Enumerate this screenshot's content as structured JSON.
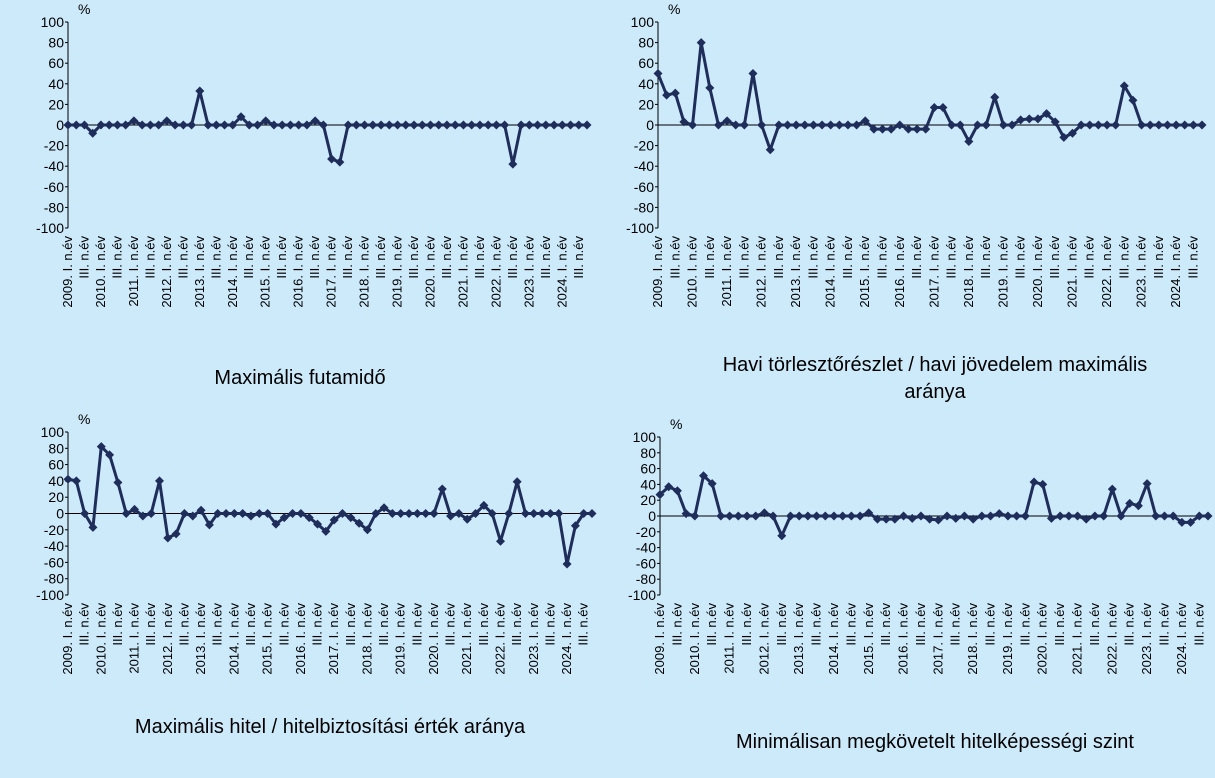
{
  "chart_data": [
    {
      "type": "line",
      "title": "Maximális futamidő",
      "y_unit": "%",
      "color": "#1f2d5a",
      "categories": [
        "2009. I. n.év",
        null,
        "III. n.év",
        null,
        "2010. I. n.év",
        null,
        "III. n.év",
        null,
        "2011. I. n.év",
        null,
        "III. n.év",
        null,
        "2012. I. n.év",
        null,
        "III. n.év",
        null,
        "2013. I. n.év",
        null,
        "III. n.év",
        null,
        "2014. I. n.év",
        null,
        "III. n.év",
        null,
        "2015. I. n.év",
        null,
        "III. n.év",
        null,
        "2016. I. n.év",
        null,
        "III. n.év",
        null,
        "2017. I. n.év",
        null,
        "III. n.év",
        null,
        "2018. I. n.év",
        null,
        "III. n.év",
        null,
        "2019. I. n.év",
        null,
        "III. n.év",
        null,
        "2020. I. n.év",
        null,
        "III. n.év",
        null,
        "2021. I. n.év",
        null,
        "III. n.év",
        null,
        "2022. I. n.év",
        null,
        "III. n.év",
        null,
        "2023. I. n.év",
        null,
        "III. n.év",
        null,
        "2024. I. n.év",
        null,
        "III. n.év",
        null
      ],
      "values": [
        0,
        0,
        0,
        -8,
        0,
        0,
        0,
        0,
        4,
        0,
        0,
        0,
        4,
        0,
        0,
        0,
        33,
        0,
        0,
        0,
        0,
        8,
        0,
        0,
        4,
        0,
        0,
        0,
        0,
        0,
        4,
        0,
        -33,
        -36,
        0,
        0,
        0,
        0,
        0,
        0,
        0,
        0,
        0,
        0,
        0,
        0,
        0,
        0,
        0,
        0,
        0,
        0,
        0,
        0,
        -38,
        0,
        0,
        0,
        0,
        0,
        0,
        0,
        0,
        0
      ],
      "ylim": [
        -100,
        100
      ],
      "yticks": [
        100,
        80,
        60,
        40,
        20,
        0,
        -20,
        -40,
        -60,
        -80,
        -100
      ]
    },
    {
      "type": "line",
      "title": "Havi törlesztőrészlet / havi jövedelem maximális aránya",
      "y_unit": "%",
      "color": "#1f2d5a",
      "categories": [
        "2009. I. n.év",
        null,
        "III. n.év",
        null,
        "2010. I. n.év",
        null,
        "III. n.év",
        null,
        "2011. I. n.év",
        null,
        "III. n.év",
        null,
        "2012. I. n.év",
        null,
        "III. n.év",
        null,
        "2013. I. n.év",
        null,
        "III. n.év",
        null,
        "2014. I. n.év",
        null,
        "III. n.év",
        null,
        "2015. I. n.év",
        null,
        "III. n.év",
        null,
        "2016. I. n.év",
        null,
        "III. n.év",
        null,
        "2017. I. n.év",
        null,
        "III. n.év",
        null,
        "2018. I. n.év",
        null,
        "III. n.év",
        null,
        "2019. I. n.év",
        null,
        "III. n.év",
        null,
        "2020. I. n.év",
        null,
        "III. n.év",
        null,
        "2021. I. n.év",
        null,
        "III. n.év",
        null,
        "2022. I. n.év",
        null,
        "III. n.év",
        null,
        "2023. I. n.év",
        null,
        "III. n.év",
        null,
        "2024. I. n.év",
        null,
        "III. n.év",
        null
      ],
      "values": [
        50,
        29,
        31,
        3,
        0,
        80,
        36,
        0,
        4,
        0,
        0,
        50,
        0,
        -24,
        0,
        0,
        0,
        0,
        0,
        0,
        0,
        0,
        0,
        0,
        4,
        -4,
        -4,
        -4,
        0,
        -4,
        -4,
        -4,
        17,
        17,
        0,
        0,
        -16,
        0,
        0,
        27,
        0,
        0,
        5,
        6,
        6,
        11,
        3,
        -12,
        -8,
        0,
        0,
        0,
        0,
        0,
        38,
        24,
        0,
        0,
        0,
        0,
        0,
        0,
        0,
        0
      ],
      "ylim": [
        -100,
        100
      ],
      "yticks": [
        100,
        80,
        60,
        40,
        20,
        0,
        -20,
        -40,
        -60,
        -80,
        -100
      ]
    },
    {
      "type": "line",
      "title": "Maximális hitel / hitelbiztosítási érték aránya",
      "y_unit": "%",
      "color": "#1f2d5a",
      "categories": [
        "2009. I. n.év",
        null,
        "III. n.év",
        null,
        "2010. I. n.év",
        null,
        "III. n.év",
        null,
        "2011. I. n.év",
        null,
        "III. n.év",
        null,
        "2012. I. n.év",
        null,
        "III. n.év",
        null,
        "2013. I. n.év",
        null,
        "III. n.év",
        null,
        "2014. I. n.év",
        null,
        "III. n.év",
        null,
        "2015. I. n.év",
        null,
        "III. n.év",
        null,
        "2016. I. n.év",
        null,
        "III. n.év",
        null,
        "2017. I. n.év",
        null,
        "III. n.év",
        null,
        "2018. I. n.év",
        null,
        "III. n.év",
        null,
        "2019. I. n.év",
        null,
        "III. n.év",
        null,
        "2020. I. n.év",
        null,
        "III. n.év",
        null,
        "2021. I. n.év",
        null,
        "III. n.év",
        null,
        "2022. I. n.év",
        null,
        "III. n.év",
        null,
        "2023. I. n.év",
        null,
        "III. n.év",
        null,
        "2024. I. n.év",
        null,
        "III. n.év",
        null
      ],
      "values": [
        42,
        40,
        0,
        -17,
        82,
        72,
        38,
        0,
        5,
        -3,
        0,
        40,
        -30,
        -25,
        0,
        -3,
        4,
        -14,
        0,
        0,
        0,
        0,
        -3,
        0,
        0,
        -13,
        -5,
        0,
        0,
        -5,
        -13,
        -22,
        -8,
        0,
        -5,
        -12,
        -20,
        0,
        7,
        0,
        0,
        0,
        0,
        0,
        0,
        30,
        -3,
        0,
        -7,
        0,
        10,
        0,
        -34,
        0,
        39,
        0,
        0,
        0,
        0,
        0,
        -62,
        -15,
        0,
        0
      ],
      "ylim": [
        -100,
        100
      ],
      "yticks": [
        100,
        80,
        60,
        40,
        20,
        0,
        -20,
        -40,
        -60,
        -80,
        -100
      ]
    },
    {
      "type": "line",
      "title": "Minimálisan megkövetelt hitelképességi szint",
      "y_unit": "%",
      "color": "#1f2d5a",
      "categories": [
        "2009. I. n.év",
        null,
        "III. n.év",
        null,
        "2010. I. n.év",
        null,
        "III. n.év",
        null,
        "2011. I. n.év",
        null,
        "III. n.év",
        null,
        "2012. I. n.év",
        null,
        "III. n.év",
        null,
        "2013. I. n.év",
        null,
        "III. n.év",
        null,
        "2014. I. n.év",
        null,
        "III. n.év",
        null,
        "2015. I. n.év",
        null,
        "III. n.év",
        null,
        "2016. I. n.év",
        null,
        "III. n.év",
        null,
        "2017. I. n.év",
        null,
        "III. n.év",
        null,
        "2018. I. n.év",
        null,
        "III. n.év",
        null,
        "2019. I. n.év",
        null,
        "III. n.év",
        null,
        "2020. I. n.év",
        null,
        "III. n.év",
        null,
        "2021. I. n.év",
        null,
        "III. n.év",
        null,
        "2022. I. n.év",
        null,
        "III. n.év",
        null,
        "2023. I. n.év",
        null,
        "III. n.év",
        null,
        "2024. I. n.év",
        null,
        "III. n.év",
        null
      ],
      "values": [
        27,
        37,
        32,
        3,
        0,
        51,
        41,
        0,
        0,
        0,
        0,
        0,
        4,
        0,
        -25,
        0,
        0,
        0,
        0,
        0,
        0,
        0,
        0,
        0,
        4,
        -4,
        -4,
        -4,
        0,
        -3,
        0,
        -4,
        -5,
        0,
        -3,
        0,
        -4,
        0,
        0,
        3,
        0,
        0,
        0,
        43,
        40,
        -3,
        0,
        0,
        0,
        -4,
        0,
        0,
        34,
        0,
        16,
        13,
        41,
        0,
        0,
        0,
        -8,
        -8,
        0,
        0
      ],
      "ylim": [
        -100,
        100
      ],
      "yticks": [
        100,
        80,
        60,
        40,
        20,
        0,
        -20,
        -40,
        -60,
        -80,
        -100
      ]
    }
  ]
}
